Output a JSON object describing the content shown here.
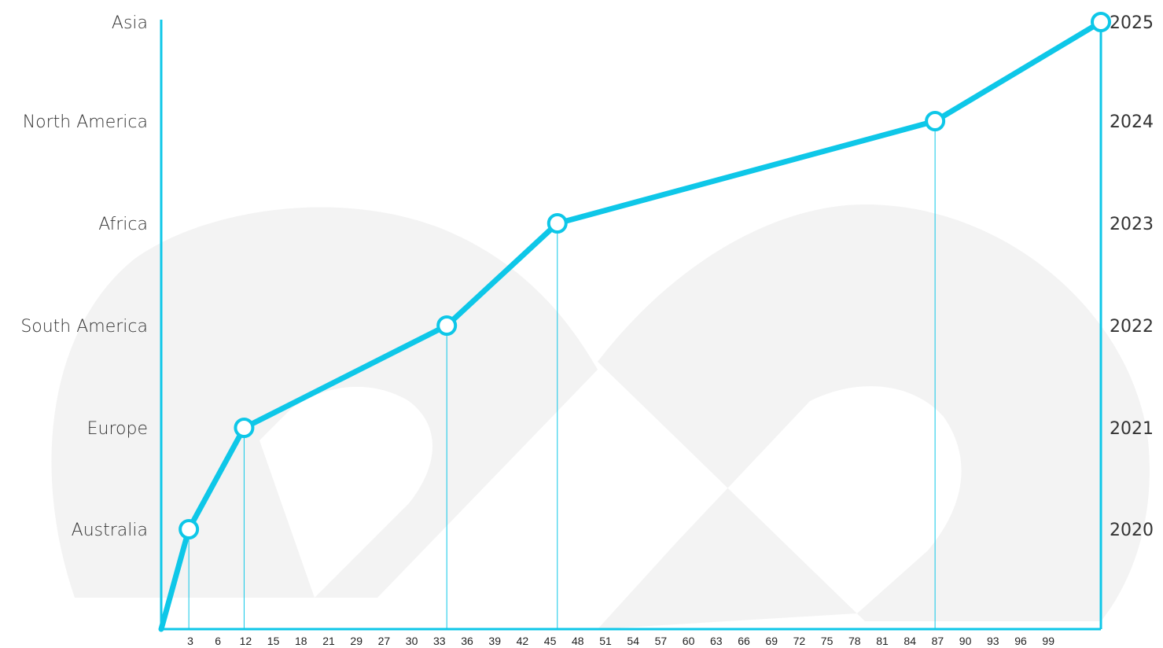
{
  "colors": {
    "accent": "#0ec7e8",
    "watermark": "#f3f3f3",
    "text": "#333333",
    "marker_fill": "#ffffff"
  },
  "chart_data": {
    "type": "line",
    "title": "",
    "xlabel": "",
    "ylabel": "",
    "xlim": [
      0,
      102
    ],
    "ylim": [
      0,
      6
    ],
    "grid": false,
    "legend": "none",
    "x_ticks": [
      "3",
      "6",
      "12",
      "15",
      "18",
      "21",
      "29",
      "27",
      "30",
      "33",
      "36",
      "39",
      "42",
      "45",
      "48",
      "51",
      "54",
      "57",
      "60",
      "63",
      "66",
      "69",
      "72",
      "75",
      "78",
      "81",
      "84",
      "87",
      "90",
      "93",
      "96",
      "99"
    ],
    "y_left_labels": [
      "Australia",
      "Europe",
      "South America",
      "Africa",
      "North America",
      "Asia"
    ],
    "y_right_labels": [
      "2020",
      "2021",
      "2022",
      "2023",
      "2024",
      "2025"
    ],
    "watermark_text": "20",
    "series": [
      {
        "points": [
          {
            "x": 0,
            "y": 0
          },
          {
            "x": 3,
            "y": 1
          },
          {
            "x": 9,
            "y": 2
          },
          {
            "x": 31,
            "y": 3
          },
          {
            "x": 43,
            "y": 4
          },
          {
            "x": 84,
            "y": 5
          },
          {
            "x": 102,
            "y": 6
          }
        ]
      }
    ]
  }
}
